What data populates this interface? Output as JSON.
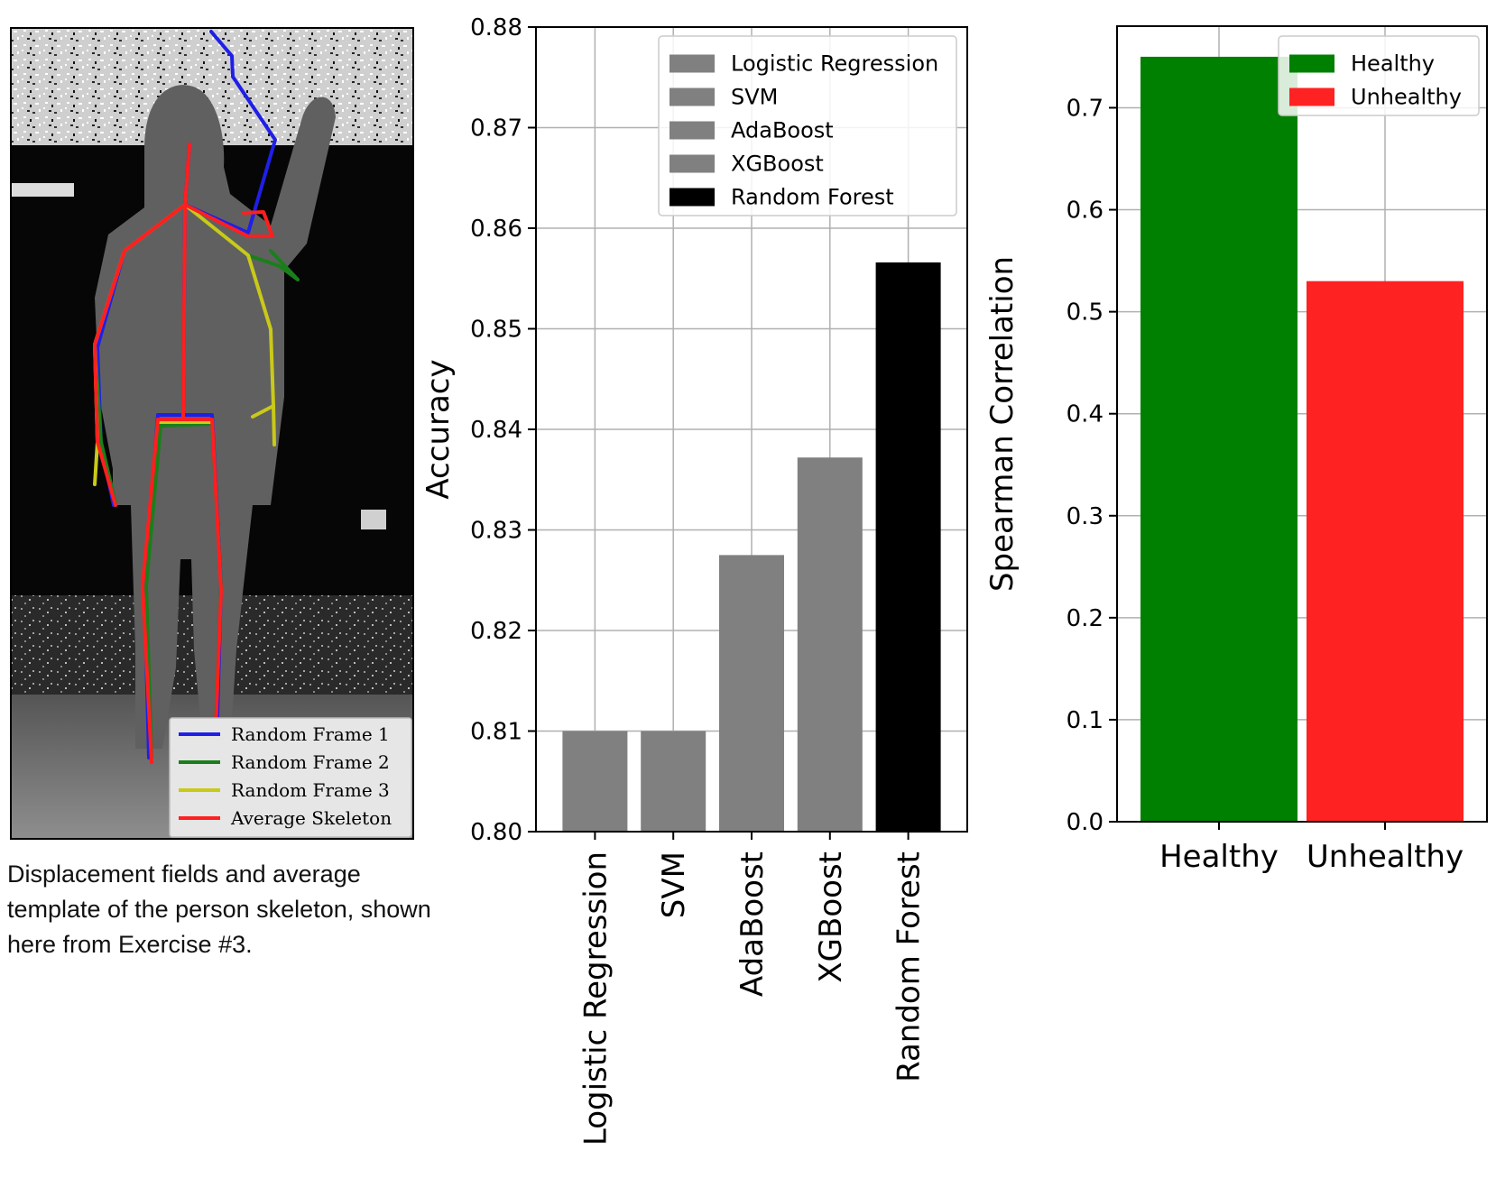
{
  "skeleton_panel": {
    "legend": [
      {
        "label": "Random Frame 1",
        "color": "#1f1fe8"
      },
      {
        "label": "Random Frame 2",
        "color": "#1a7f1a"
      },
      {
        "label": "Random Frame 3",
        "color": "#c9c91a"
      },
      {
        "label": "Average Skeleton",
        "color": "#ff1f1f"
      }
    ],
    "caption": "Displacement fields and average template of the person skeleton, shown here from Exercise #3."
  },
  "chart_data": [
    {
      "type": "bar",
      "title": "",
      "xlabel": "",
      "ylabel": "Accuracy",
      "categories": [
        "Logistic Regression",
        "SVM",
        "AdaBoost",
        "XGBoost",
        "Random Forest"
      ],
      "values": [
        0.81,
        0.81,
        0.8275,
        0.8372,
        0.8566
      ],
      "colors": [
        "#808080",
        "#808080",
        "#808080",
        "#808080",
        "#000000"
      ],
      "ylim": [
        0.8,
        0.88
      ],
      "yticks": [
        "0.80",
        "0.81",
        "0.82",
        "0.83",
        "0.84",
        "0.85",
        "0.86",
        "0.87",
        "0.88"
      ],
      "grid": true,
      "legend": {
        "placement": "top-right",
        "entries": [
          "Logistic Regression",
          "SVM",
          "AdaBoost",
          "XGBoost",
          "Random Forest"
        ]
      },
      "xtick_rotation": "vertical"
    },
    {
      "type": "bar",
      "title": "",
      "xlabel": "",
      "ylabel": "Spearman Correlation",
      "categories": [
        "Healthy",
        "Unhealthy"
      ],
      "values": [
        0.75,
        0.53
      ],
      "colors": [
        "#008000",
        "#ff2222"
      ],
      "ylim": [
        0.0,
        0.78
      ],
      "yticks": [
        "0.0",
        "0.1",
        "0.2",
        "0.3",
        "0.4",
        "0.5",
        "0.6",
        "0.7"
      ],
      "grid": true,
      "legend": {
        "placement": "top-right",
        "entries": [
          "Healthy",
          "Unhealthy"
        ]
      }
    }
  ]
}
